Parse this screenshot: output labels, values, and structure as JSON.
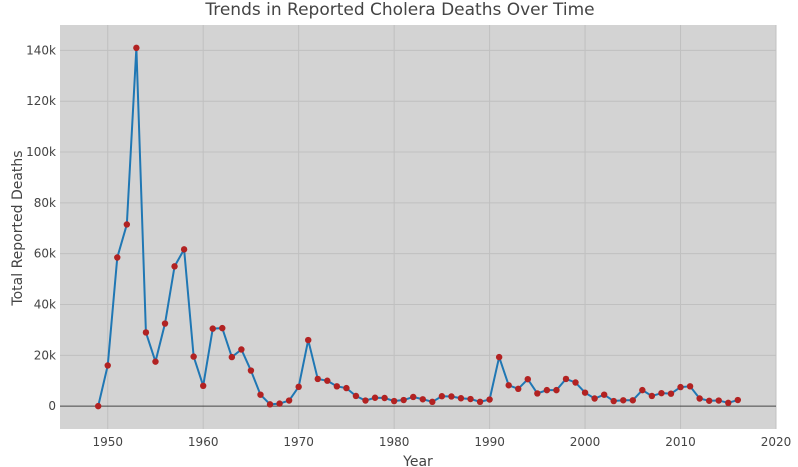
{
  "chart_data": {
    "type": "line",
    "title": "Trends in Reported Cholera Deaths Over Time",
    "xlabel": "Year",
    "ylabel": "Total Reported Deaths",
    "xlim": [
      1945,
      2020
    ],
    "ylim": [
      -9000,
      150000
    ],
    "x_ticks": [
      1950,
      1960,
      1970,
      1980,
      1990,
      2000,
      2010,
      2020
    ],
    "x_tick_labels": [
      "1950",
      "1960",
      "1970",
      "1980",
      "1990",
      "2000",
      "2010",
      "2020"
    ],
    "y_ticks": [
      0,
      20000,
      40000,
      60000,
      80000,
      100000,
      120000,
      140000
    ],
    "y_tick_labels": [
      "0",
      "20k",
      "40k",
      "60k",
      "80k",
      "100k",
      "120k",
      "140k"
    ],
    "grid": true,
    "plot_background": "#d3d3d3",
    "line_color": "#1f77b4",
    "marker_color": "#b22222",
    "series": [
      {
        "x": [
          1949,
          1950,
          1951,
          1952,
          1953,
          1954,
          1955,
          1956,
          1957,
          1958,
          1959,
          1960,
          1961,
          1962,
          1963,
          1964,
          1965,
          1966,
          1967,
          1968,
          1969,
          1970,
          1971,
          1972,
          1973,
          1974,
          1975,
          1976,
          1977,
          1978,
          1979,
          1980,
          1981,
          1982,
          1983,
          1984,
          1985,
          1986,
          1987,
          1988,
          1989,
          1990,
          1991,
          1992,
          1993,
          1994,
          1995,
          1996,
          1997,
          1998,
          1999,
          2000,
          2001,
          2002,
          2003,
          2004,
          2005,
          2006,
          2007,
          2008,
          2009,
          2010,
          2011,
          2012,
          2013,
          2014,
          2015,
          2016
        ],
        "y": [
          0,
          16000,
          58500,
          71500,
          141000,
          29000,
          17500,
          32500,
          55000,
          61700,
          19500,
          8000,
          30500,
          30700,
          19300,
          22300,
          14000,
          4500,
          700,
          1000,
          2200,
          7600,
          26000,
          10700,
          10000,
          7800,
          7100,
          4000,
          2200,
          3300,
          3200,
          2000,
          2400,
          3600,
          2700,
          1700,
          3900,
          3800,
          3100,
          2800,
          1700,
          2600,
          19300,
          8200,
          6800,
          10600,
          5000,
          6300,
          6300,
          10700,
          9300,
          5300,
          3000,
          4500,
          2000,
          2300,
          2300,
          6300,
          4000,
          5100,
          4900,
          7500,
          7800,
          3000,
          2100,
          2200,
          1300,
          2400
        ]
      }
    ]
  }
}
